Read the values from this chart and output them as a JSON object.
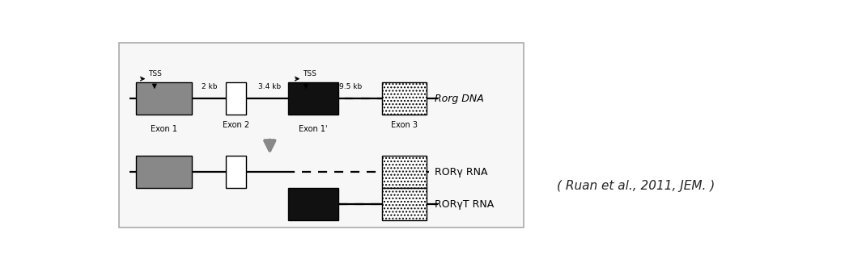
{
  "fig_width": 10.44,
  "fig_height": 3.26,
  "dpi": 100,
  "bg_color": "#ffffff",
  "panel_bg": "#f7f7f7",
  "panel_edge": "#aaaaaa",
  "citation_text": "( Ruan et al., 2011, JEM. )",
  "rorg_dna_label": "Rorg DNA",
  "rorg_rna_label": "RORγ RNA",
  "rorgt_rna_label": "RORγT RNA",
  "exon1_label": "Exon 1",
  "exon2_label": "Exon 2",
  "exon1p_label": "Exon 1'",
  "exon3_label": "Exon 3",
  "kb2_label": "2 kb",
  "kb34_label": "3.4 kb",
  "kb95_label": "9.5 kb",
  "tss_label": "TSS",
  "gray_color": "#888888",
  "black_color": "#111111",
  "line_color": "#111111"
}
